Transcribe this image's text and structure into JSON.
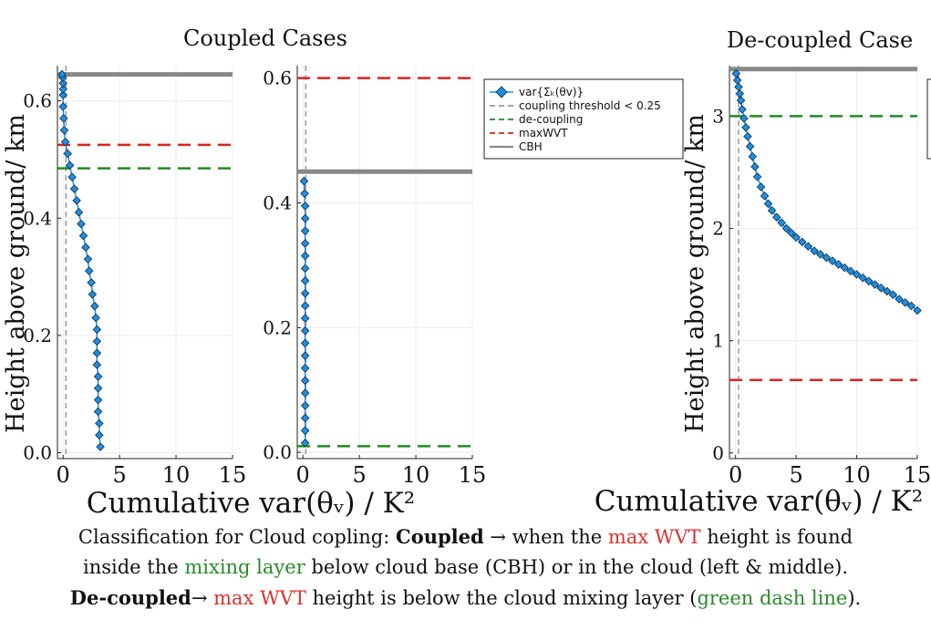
{
  "header": {
    "left_title": "Coupled Cases",
    "right_title": "De-coupled Case",
    "ylabel": "Height above ground/ km",
    "xlabel": "Cumulative var(θᵥ) / K²"
  },
  "legend": {
    "position": "top-right of middle panel",
    "entries": [
      {
        "label": "var{Σₖ(θv)}",
        "color": "#1f8fe0",
        "style": "line+diamond"
      },
      {
        "label": "coupling threshold < 0.25",
        "color": "#999999",
        "style": "dashed"
      },
      {
        "label": "de-coupling",
        "color": "#228b22",
        "style": "dashed"
      },
      {
        "label": "maxWVT",
        "color": "#e02020",
        "style": "dashed"
      },
      {
        "label": "CBH",
        "color": "#888888",
        "style": "solid"
      }
    ]
  },
  "colors": {
    "series": "#1f8fe0",
    "threshold": "#999999",
    "decoupling": "#228b22",
    "maxwvt": "#e02020",
    "cbh": "#888888"
  },
  "chart_data": [
    {
      "type": "line",
      "panel": "coupled-left",
      "xlim": [
        -0.5,
        15
      ],
      "ylim": [
        -0.01,
        0.66
      ],
      "xticks": [
        "0",
        "5",
        "10",
        "15"
      ],
      "yticks": [
        "0.0",
        "0.2",
        "0.4",
        "0.6"
      ],
      "grid": true,
      "series": [
        {
          "x": [
            3.3,
            3.2,
            3.2,
            3.1,
            3.1,
            3.1,
            3.1,
            3.0,
            3.0,
            3.0,
            3.0,
            2.9,
            2.8,
            2.6,
            2.5,
            2.3,
            2.2,
            2.0,
            1.8,
            1.6,
            1.4,
            1.2,
            1.0,
            0.8,
            0.6,
            0.4,
            0.2,
            0.1,
            0.05,
            0.0,
            0.0,
            0.0,
            0.0,
            -0.05,
            -0.1
          ],
          "y": [
            0.01,
            0.03,
            0.05,
            0.07,
            0.09,
            0.11,
            0.13,
            0.15,
            0.17,
            0.19,
            0.21,
            0.23,
            0.25,
            0.27,
            0.29,
            0.31,
            0.33,
            0.35,
            0.37,
            0.39,
            0.41,
            0.43,
            0.45,
            0.47,
            0.49,
            0.51,
            0.53,
            0.55,
            0.57,
            0.59,
            0.61,
            0.62,
            0.63,
            0.64,
            0.645
          ]
        }
      ],
      "hlines": {
        "cbh": 0.645,
        "maxwvt": 0.525,
        "decoupling": 0.485
      },
      "vline_threshold": 0.25
    },
    {
      "type": "line",
      "panel": "coupled-middle",
      "xlim": [
        -0.5,
        15
      ],
      "ylim": [
        -0.01,
        0.62
      ],
      "xticks": [
        "0",
        "5",
        "10",
        "15"
      ],
      "yticks": [
        "0.0",
        "0.2",
        "0.4",
        "0.6"
      ],
      "grid": true,
      "series": [
        {
          "x": [
            0.2,
            0.2,
            0.2,
            0.2,
            0.2,
            0.2,
            0.2,
            0.2,
            0.2,
            0.2,
            0.2,
            0.2,
            0.2,
            0.2,
            0.2,
            0.2,
            0.2,
            0.2,
            0.2,
            0.2,
            0.15,
            0.1
          ],
          "y": [
            0.015,
            0.035,
            0.055,
            0.075,
            0.095,
            0.115,
            0.135,
            0.155,
            0.175,
            0.195,
            0.215,
            0.235,
            0.255,
            0.275,
            0.295,
            0.315,
            0.335,
            0.355,
            0.375,
            0.395,
            0.415,
            0.435
          ]
        }
      ],
      "hlines": {
        "cbh": 0.45,
        "maxwvt": 0.6,
        "decoupling": 0.01
      },
      "vline_threshold": 0.25
    },
    {
      "type": "line",
      "panel": "decoupled-right",
      "xlim": [
        -0.5,
        15
      ],
      "ylim": [
        -0.05,
        3.45
      ],
      "xticks": [
        "0",
        "5",
        "10",
        "15"
      ],
      "yticks": [
        "0",
        "1",
        "2",
        "3"
      ],
      "grid": true,
      "series": [
        {
          "x": [
            15.0,
            14.5,
            14.0,
            13.5,
            13.0,
            12.5,
            12.0,
            11.5,
            11.0,
            10.5,
            10.0,
            9.5,
            9.0,
            8.5,
            8.0,
            7.5,
            7.0,
            6.5,
            6.0,
            5.5,
            5.0,
            4.6,
            4.2,
            3.8,
            3.4,
            3.0,
            2.7,
            2.4,
            2.1,
            1.8,
            1.6,
            1.4,
            1.2,
            1.0,
            0.85,
            0.7,
            0.55,
            0.45,
            0.35,
            0.25,
            0.15,
            0.05
          ],
          "y": [
            1.27,
            1.31,
            1.34,
            1.37,
            1.41,
            1.44,
            1.47,
            1.5,
            1.53,
            1.56,
            1.59,
            1.62,
            1.65,
            1.68,
            1.71,
            1.74,
            1.77,
            1.8,
            1.84,
            1.88,
            1.92,
            1.96,
            2.0,
            2.05,
            2.1,
            2.16,
            2.22,
            2.29,
            2.37,
            2.46,
            2.55,
            2.64,
            2.73,
            2.82,
            2.9,
            2.98,
            3.06,
            3.14,
            3.2,
            3.26,
            3.32,
            3.38
          ]
        }
      ],
      "hlines": {
        "cbh": 3.42,
        "maxwvt": 0.65,
        "decoupling": 3.0
      },
      "vline_threshold": 0.25
    }
  ],
  "caption": {
    "l1_a": "Classification for Cloud copling: ",
    "l1_b": "Coupled",
    "l1_c": " → when the ",
    "l1_d": "max WVT",
    "l1_e": " height is found",
    "l2_a": "inside the ",
    "l2_b": "mixing layer",
    "l2_c": " below cloud base (CBH) or in the cloud (left & middle).",
    "l3_a": "De-coupled",
    "l3_b": "→ ",
    "l3_c": "max WVT",
    "l3_d": " height is below the cloud mixing layer (",
    "l3_e": "green dash line",
    "l3_f": ")."
  }
}
